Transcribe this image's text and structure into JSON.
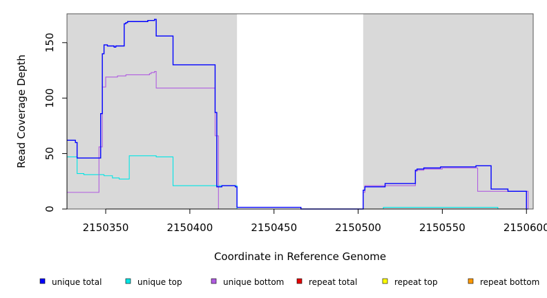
{
  "chart_data": {
    "type": "line",
    "title": "",
    "xlabel": "Coordinate in Reference Genome",
    "ylabel": "Read Coverage Depth",
    "xlim": [
      2150327,
      2150604
    ],
    "ylim": [
      0,
      176
    ],
    "x_ticks": [
      2150350,
      2150400,
      2150450,
      2150500,
      2150550,
      2150600
    ],
    "x_tick_labels": [
      "2150350",
      "2150400",
      "2150450",
      "2150500",
      "2150550",
      "2150600"
    ],
    "y_ticks": [
      0,
      50,
      100,
      150
    ],
    "y_tick_labels": [
      "0",
      "50",
      "100",
      "150"
    ],
    "grid": false,
    "legend_position": "bottom",
    "background_bands": [
      {
        "x0": 2150327,
        "x1": 2150428,
        "color": "#d9d9d9"
      },
      {
        "x0": 2150503,
        "x1": 2150604,
        "color": "#d9d9d9"
      }
    ],
    "series": [
      {
        "name": "unique total",
        "color": "#0000ff",
        "x": [
          2150327,
          2150332,
          2150333,
          2150347,
          2150348,
          2150349,
          2150351,
          2150355,
          2150356,
          2150357,
          2150361,
          2150362,
          2150363,
          2150374,
          2150375,
          2150376,
          2150379,
          2150380,
          2150389,
          2150390,
          2150404,
          2150415,
          2150416,
          2150419,
          2150427,
          2150428,
          2150465,
          2150466,
          2150502,
          2150503,
          2150504,
          2150515,
          2150516,
          2150533,
          2150534,
          2150535,
          2150539,
          2150549,
          2150551,
          2150570,
          2150571,
          2150579,
          2150580,
          2150589,
          2150599,
          2150600,
          2150601
        ],
        "y": [
          62,
          60,
          46,
          86,
          140,
          148,
          147,
          146,
          147,
          147,
          167,
          168,
          169,
          169,
          170,
          170,
          171,
          156,
          156,
          130,
          130,
          87,
          20,
          21,
          20,
          1.5,
          1.5,
          0,
          0,
          17,
          20,
          20,
          23,
          23,
          35,
          36,
          37,
          38,
          38,
          39,
          39,
          18,
          18,
          16,
          16,
          0,
          0
        ]
      },
      {
        "name": "unique top",
        "color": "#00e5e5",
        "x": [
          2150327,
          2150333,
          2150337,
          2150349,
          2150354,
          2150358,
          2150364,
          2150380,
          2150390,
          2150416,
          2150428,
          2150504,
          2150515,
          2150582,
          2150583,
          2150601
        ],
        "y": [
          47,
          32,
          31,
          30,
          28,
          27,
          48,
          47,
          21,
          21,
          0,
          0,
          1.5,
          1.5,
          0,
          0
        ]
      },
      {
        "name": "unique bottom",
        "color": "#b05ce0",
        "x": [
          2150327,
          2150333,
          2150346,
          2150348,
          2150350,
          2150357,
          2150362,
          2150376,
          2150377,
          2150379,
          2150380,
          2150389,
          2150415,
          2150417,
          2150428,
          2150503,
          2150504,
          2150516,
          2150534,
          2150535,
          2150539,
          2150550,
          2150570,
          2150571,
          2150601
        ],
        "y": [
          15,
          15,
          56,
          110,
          119,
          120,
          121,
          122,
          123,
          124,
          109,
          109,
          66,
          0,
          0,
          15,
          21,
          21,
          34,
          35,
          36,
          37,
          37,
          16,
          0
        ]
      },
      {
        "name": "repeat total",
        "color": "#e50000",
        "x": [
          2150327,
          2150604
        ],
        "y": [
          0,
          0
        ]
      },
      {
        "name": "repeat top",
        "color": "#ffff00",
        "x": [
          2150327,
          2150604
        ],
        "y": [
          0,
          0
        ]
      },
      {
        "name": "repeat bottom",
        "color": "#ff9900",
        "x": [
          2150327,
          2150604
        ],
        "y": [
          0,
          0
        ]
      }
    ]
  }
}
